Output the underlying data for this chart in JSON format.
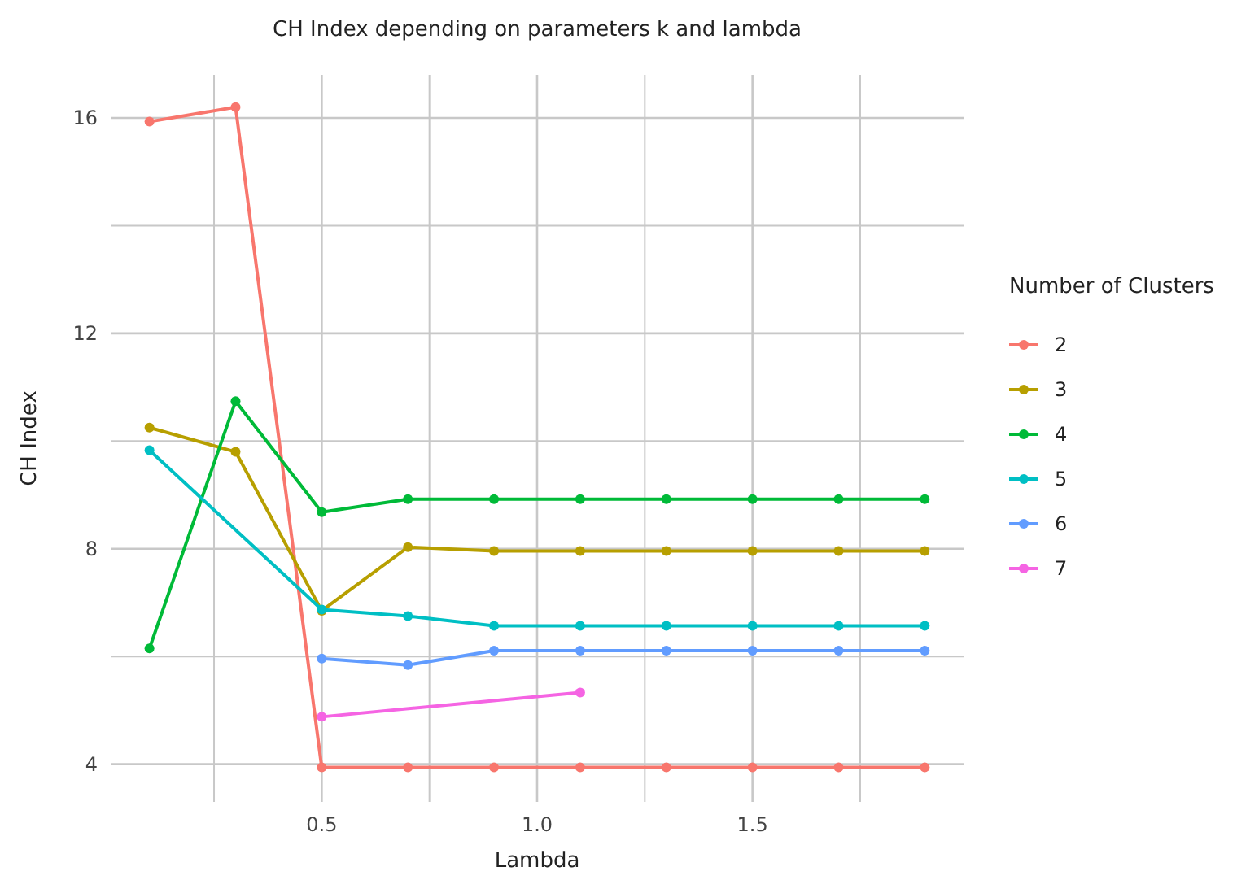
{
  "chart_data": {
    "type": "line",
    "title": "CH Index depending on parameters k and lambda",
    "xlabel": "Lambda",
    "ylabel": "CH Index",
    "legend_title": "Number of Clusters",
    "legend": "right",
    "grid": true,
    "marker": "circle",
    "line_style": "solid",
    "xlim": [
      0.01,
      1.99
    ],
    "xticks": [
      {
        "value": 0.25,
        "label": null
      },
      0.5,
      {
        "value": 0.75,
        "label": null
      },
      {
        "value": 1,
        "label": "1.0"
      },
      {
        "value": 1.25,
        "label": null
      },
      1.5,
      {
        "value": 1.75,
        "label": null
      }
    ],
    "ylim": [
      3.3,
      16.8
    ],
    "yticks": [
      4,
      {
        "value": 6,
        "label": null
      },
      8,
      {
        "value": 10,
        "label": null
      },
      12,
      {
        "value": 14,
        "label": null
      },
      16
    ],
    "series": [
      {
        "name": "2",
        "color": "#f8766d",
        "x": [
          0.1,
          0.3,
          0.5,
          0.7,
          0.9,
          1.1,
          1.3,
          1.5,
          1.7,
          1.9
        ],
        "values": [
          15.93,
          16.2,
          3.94,
          3.94,
          3.94,
          3.94,
          3.94,
          3.94,
          3.94,
          3.94
        ]
      },
      {
        "name": "3",
        "color": "#b79f00",
        "x": [
          0.1,
          0.3,
          0.5,
          0.7,
          0.9,
          1.1,
          1.3,
          1.5,
          1.7,
          1.9
        ],
        "values": [
          10.25,
          9.8,
          6.85,
          8.03,
          7.96,
          7.96,
          7.96,
          7.96,
          7.96,
          7.96
        ]
      },
      {
        "name": "4",
        "color": "#00ba38",
        "x": [
          0.1,
          0.3,
          0.5,
          0.7,
          0.9,
          1.1,
          1.3,
          1.5,
          1.7,
          1.9
        ],
        "values": [
          6.15,
          10.74,
          8.68,
          8.92,
          8.92,
          8.92,
          8.92,
          8.92,
          8.92,
          8.92
        ]
      },
      {
        "name": "5",
        "color": "#00bfc4",
        "x": [
          0.1,
          0.5,
          0.7,
          0.9,
          1.1,
          1.3,
          1.5,
          1.7,
          1.9
        ],
        "values": [
          9.83,
          6.87,
          6.75,
          6.57,
          6.57,
          6.57,
          6.57,
          6.57,
          6.57
        ]
      },
      {
        "name": "6",
        "color": "#619cff",
        "x": [
          0.5,
          0.7,
          0.9,
          1.1,
          1.3,
          1.5,
          1.7,
          1.9
        ],
        "values": [
          5.96,
          5.84,
          6.11,
          6.11,
          6.11,
          6.11,
          6.11,
          6.11
        ]
      },
      {
        "name": "7",
        "color": "#f564e3",
        "x": [
          0.5,
          1.1
        ],
        "values": [
          4.88,
          5.33
        ]
      }
    ]
  }
}
